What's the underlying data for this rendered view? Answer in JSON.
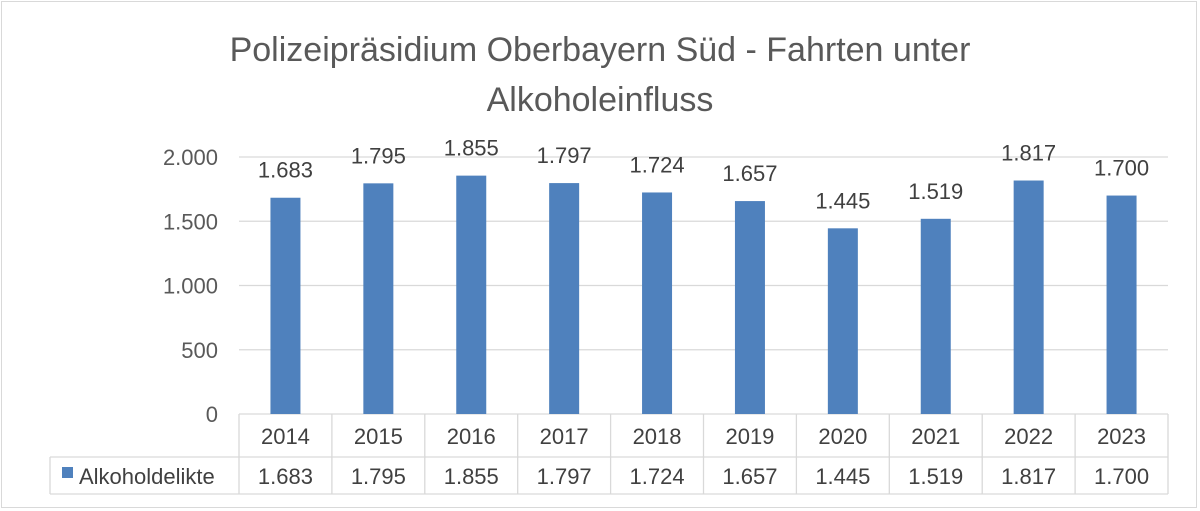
{
  "chart_data": {
    "type": "bar",
    "title_lines": [
      "Polizeipräsidium Oberbayern Süd - Fahrten unter",
      "Alkoholeinfluss"
    ],
    "categories": [
      "2014",
      "2015",
      "2016",
      "2017",
      "2018",
      "2019",
      "2020",
      "2021",
      "2022",
      "2023"
    ],
    "series": [
      {
        "name": "Alkoholdelikte",
        "values": [
          1683,
          1795,
          1855,
          1797,
          1724,
          1657,
          1445,
          1519,
          1817,
          1700
        ],
        "labels": [
          "1.683",
          "1.795",
          "1.855",
          "1.797",
          "1.724",
          "1.657",
          "1.445",
          "1.519",
          "1.817",
          "1.700"
        ]
      }
    ],
    "ylim": [
      0,
      2000
    ],
    "yticks": [
      0,
      500,
      1000,
      1500,
      2000
    ],
    "ytick_labels": [
      "0",
      "500",
      "1.000",
      "1.500",
      "2.000"
    ],
    "grid": true,
    "legend": "data-table",
    "colors": {
      "bar": "#4f81bd",
      "grid": "#d9d9d9",
      "text": "#595959"
    }
  }
}
